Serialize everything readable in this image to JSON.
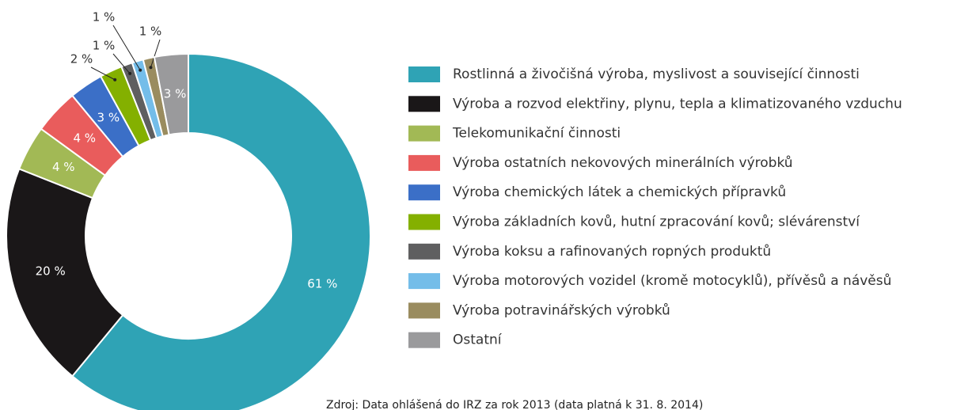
{
  "chart_data": {
    "type": "donut",
    "categories": [
      "Rostlinná a živočišná výroba, myslivost a související činnosti",
      "Výroba a rozvod elektřiny, plynu, tepla a klimatizovaného vzduchu",
      "Telekomunikační činnosti",
      "Výroba ostatních nekovových minerálních výrobků",
      "Výroba chemických látek a chemických přípravků",
      "Výroba základních kovů, hutní zpracování kovů; slévárenství",
      "Výroba koksu a rafinovaných ropných produktů",
      "Výroba motorových vozidel (kromě motocyklů), přívěsů a návěsů",
      "Výroba potravinářských výrobků",
      "Ostatní"
    ],
    "values": [
      61,
      20,
      4,
      4,
      3,
      2,
      1,
      1,
      1,
      3
    ],
    "value_labels": [
      "61 %",
      "20 %",
      "4 %",
      "4 %",
      "3 %",
      "2 %",
      "1 %",
      "1 %",
      "1 %",
      "3 %"
    ],
    "colors": [
      "#2fa3b5",
      "#1a1718",
      "#a2b955",
      "#e95c5c",
      "#3b6fc7",
      "#84b000",
      "#5f5f60",
      "#74bde9",
      "#9a8c5f",
      "#9a9a9c"
    ],
    "source": "Zdroj: Data ohlášená do IRZ za rok 2013 (data platná k 31. 8. 2014)"
  }
}
